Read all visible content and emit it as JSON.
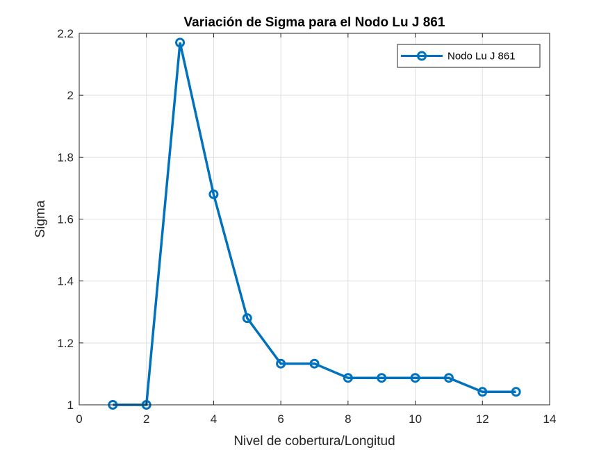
{
  "chart_data": {
    "type": "line",
    "title": "Variación de Sigma para el Nodo Lu J 861",
    "xlabel": "Nivel de cobertura/Longitud",
    "ylabel": "Sigma",
    "xlim": [
      0,
      14
    ],
    "ylim": [
      1,
      2.2
    ],
    "xticks": [
      0,
      2,
      4,
      6,
      8,
      10,
      12,
      14
    ],
    "xtick_labels": [
      "0",
      "2",
      "4",
      "6",
      "8",
      "10",
      "12",
      "14"
    ],
    "yticks": [
      1,
      1.2,
      1.4,
      1.6,
      1.8,
      2,
      2.2
    ],
    "ytick_labels": [
      "1",
      "1.2",
      "1.4",
      "1.6",
      "1.8",
      "2",
      "2.2"
    ],
    "grid": true,
    "legend_position": "top-right",
    "series": [
      {
        "name": "Nodo Lu J 861",
        "color": "#0072BD",
        "marker": "circle",
        "x": [
          1,
          2,
          3,
          4,
          5,
          6,
          7,
          8,
          9,
          10,
          11,
          12,
          13
        ],
        "y": [
          1.0,
          1.0,
          2.17,
          1.68,
          1.28,
          1.133,
          1.133,
          1.087,
          1.087,
          1.087,
          1.087,
          1.042,
          1.042
        ]
      }
    ]
  }
}
